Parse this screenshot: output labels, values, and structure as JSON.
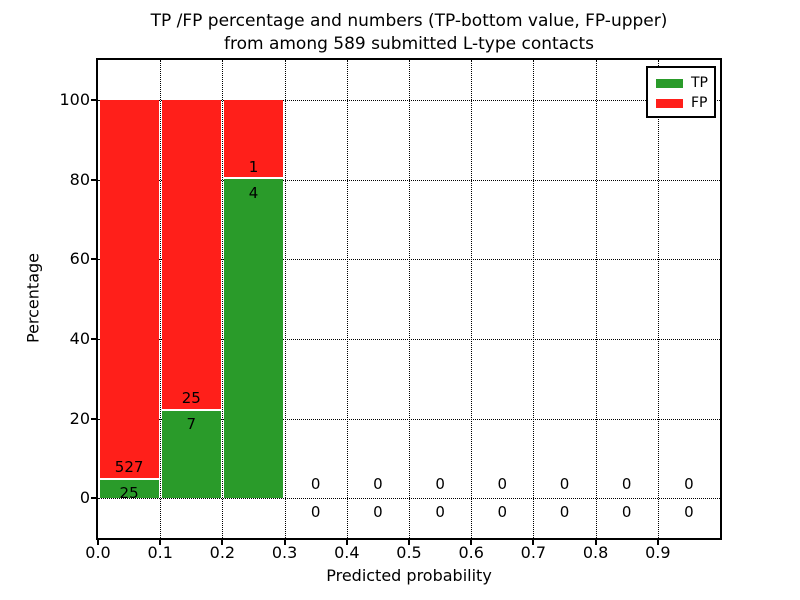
{
  "chart_data": {
    "type": "bar",
    "stacked": true,
    "title_line1": "TP /FP percentage and numbers (TP-bottom value, FP-upper)",
    "title_line2": "from among 589 submitted L-type contacts",
    "xlabel": "Predicted probability",
    "ylabel": "Percentage",
    "xlim": [
      0.0,
      1.0
    ],
    "ylim": [
      -10,
      110
    ],
    "grid": true,
    "x_tick_labels": [
      "0.0",
      "0.1",
      "0.2",
      "0.3",
      "0.4",
      "0.5",
      "0.6",
      "0.7",
      "0.8",
      "0.9"
    ],
    "y_ticks": [
      0,
      20,
      40,
      60,
      80,
      100
    ],
    "total_contacts": 589,
    "legend": {
      "position": "upper right",
      "entries": [
        {
          "label": "TP",
          "color": "#2a9b2a"
        },
        {
          "label": "FP",
          "color": "#ff1f1a"
        }
      ]
    },
    "colors": {
      "tp": "#2a9b2a",
      "fp": "#ff1f1a",
      "grid": "#000000",
      "axis": "#000000"
    },
    "bins": [
      {
        "range": "0.0-0.1",
        "tp": 25,
        "fp": 527,
        "tp_pct": 4.53,
        "fp_pct": 95.47
      },
      {
        "range": "0.1-0.2",
        "tp": 7,
        "fp": 25,
        "tp_pct": 21.88,
        "fp_pct": 78.12
      },
      {
        "range": "0.2-0.3",
        "tp": 4,
        "fp": 1,
        "tp_pct": 80.0,
        "fp_pct": 20.0
      },
      {
        "range": "0.3-0.4",
        "tp": 0,
        "fp": 0,
        "tp_pct": 0,
        "fp_pct": 0
      },
      {
        "range": "0.4-0.5",
        "tp": 0,
        "fp": 0,
        "tp_pct": 0,
        "fp_pct": 0
      },
      {
        "range": "0.5-0.6",
        "tp": 0,
        "fp": 0,
        "tp_pct": 0,
        "fp_pct": 0
      },
      {
        "range": "0.6-0.7",
        "tp": 0,
        "fp": 0,
        "tp_pct": 0,
        "fp_pct": 0
      },
      {
        "range": "0.7-0.8",
        "tp": 0,
        "fp": 0,
        "tp_pct": 0,
        "fp_pct": 0
      },
      {
        "range": "0.8-0.9",
        "tp": 0,
        "fp": 0,
        "tp_pct": 0,
        "fp_pct": 0
      },
      {
        "range": "0.9-1.0",
        "tp": 0,
        "fp": 0,
        "tp_pct": 0,
        "fp_pct": 0
      }
    ]
  }
}
